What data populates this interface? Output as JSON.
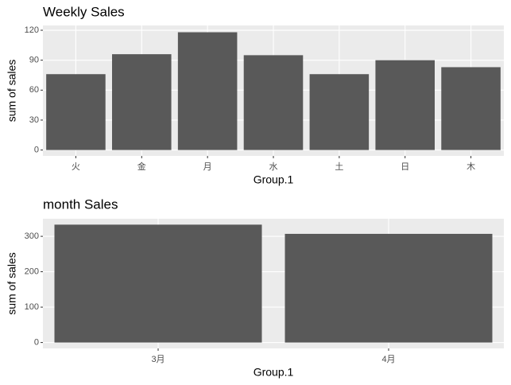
{
  "chart_data": [
    {
      "type": "bar",
      "title": "Weekly Sales",
      "x_label": "Group.1",
      "y_label": "sum of sales",
      "categories": [
        "火",
        "金",
        "月",
        "水",
        "土",
        "日",
        "木"
      ],
      "values": [
        76,
        96,
        118,
        95,
        76,
        90,
        83
      ],
      "color": "#595959",
      "ylim": [
        -5.9,
        124.8
      ],
      "yticks": [
        0,
        30,
        60,
        90,
        120
      ],
      "grid": true
    },
    {
      "type": "bar",
      "title": "month Sales",
      "x_label": "Group.1",
      "y_label": "sum of sales",
      "categories": [
        "3月",
        "4月"
      ],
      "values": [
        333,
        307
      ],
      "color": "#595959",
      "ylim": [
        -16.65,
        349.65
      ],
      "yticks": [
        0,
        100,
        200,
        300
      ],
      "grid": true
    }
  ]
}
